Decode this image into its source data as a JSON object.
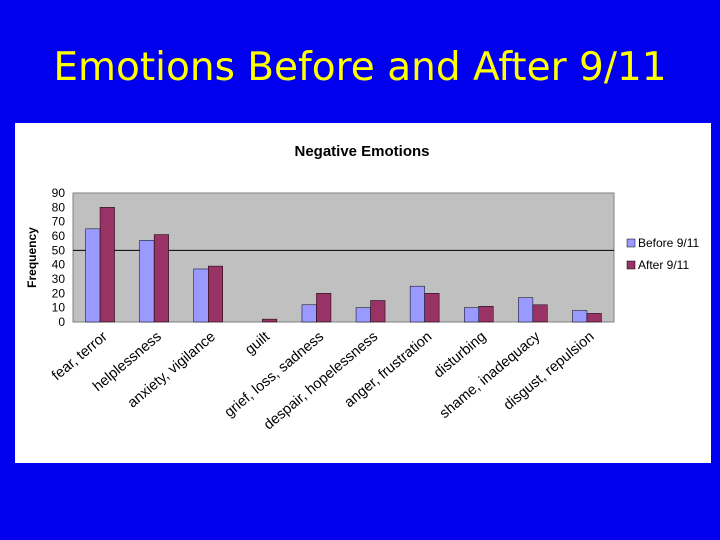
{
  "slide": {
    "title": "Emotions Before and After 9/11"
  },
  "chart_data": {
    "type": "bar",
    "title": "Negative Emotions",
    "xlabel": "",
    "ylabel": "Frequency",
    "ylim": [
      0,
      90
    ],
    "yticks": [
      0,
      10,
      20,
      30,
      40,
      50,
      60,
      70,
      80,
      90
    ],
    "grid": false,
    "reference_line": 50,
    "legend_position": "right",
    "categories": [
      "fear, terror",
      "helplessness",
      "anxiety, vigilance",
      "guilt",
      "grief, loss, sadness",
      "despair, hopelessness",
      "anger, frustration",
      "disturbing",
      "shame, inadequacy",
      "disgust, repulsion"
    ],
    "series": [
      {
        "name": "Before 9/11",
        "color": "#9999ff",
        "values": [
          65,
          57,
          37,
          0,
          12,
          10,
          25,
          10,
          17,
          8
        ]
      },
      {
        "name": "After 9/11",
        "color": "#993366",
        "values": [
          80,
          61,
          39,
          2,
          20,
          15,
          20,
          11,
          12,
          6
        ]
      }
    ],
    "plot_background": "#c0c0c0"
  }
}
